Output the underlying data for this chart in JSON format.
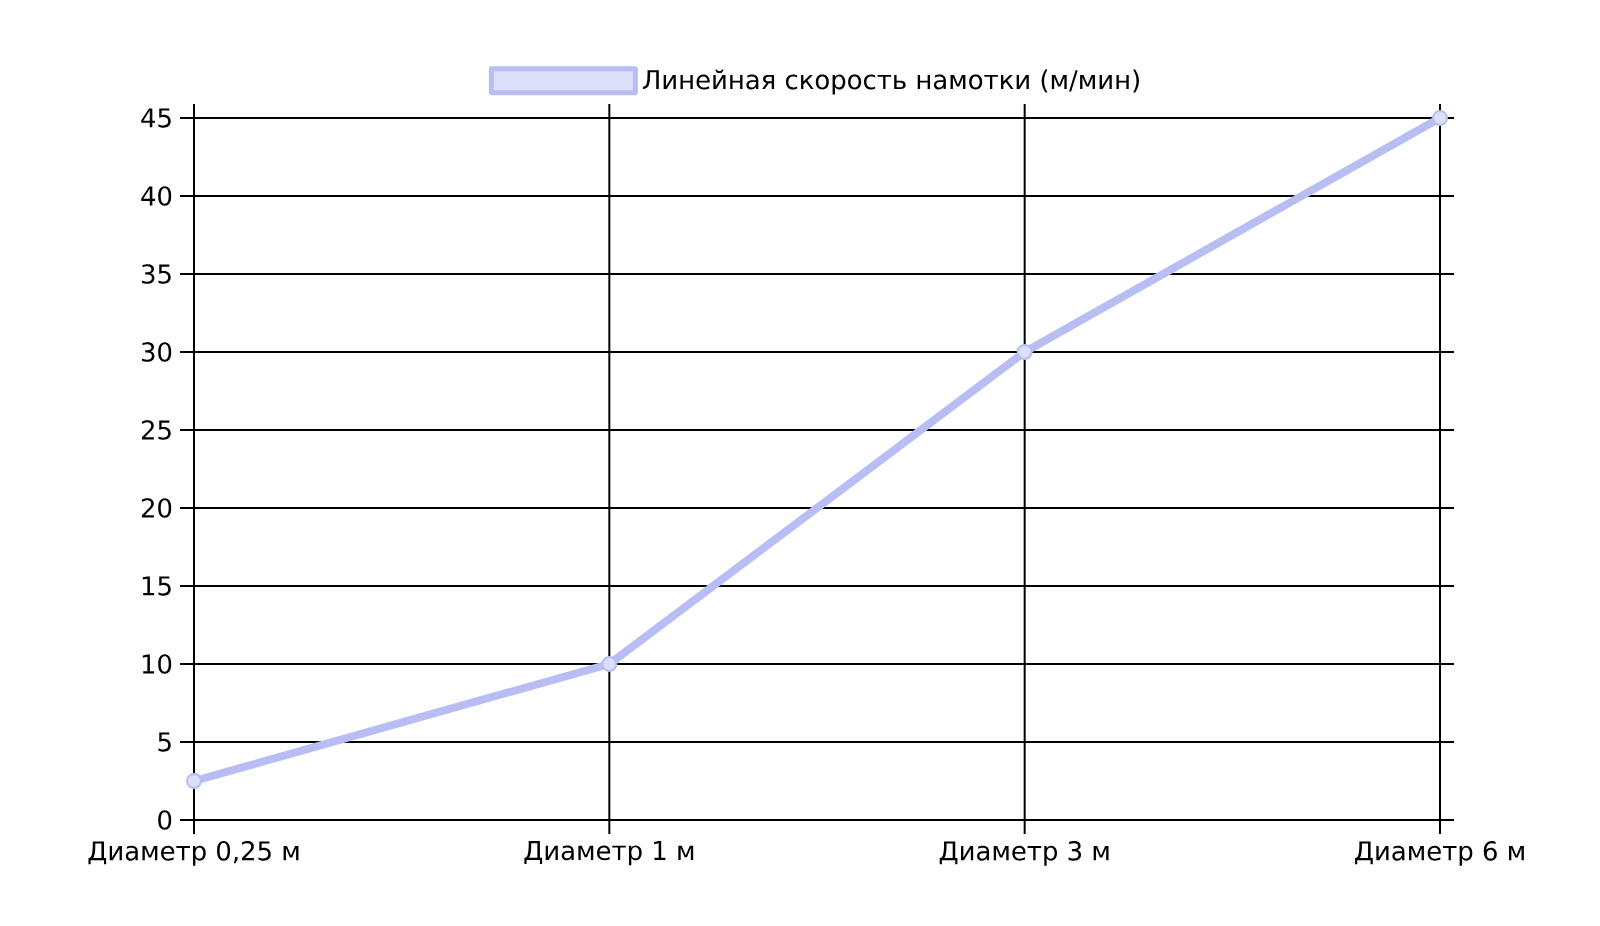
{
  "chart_data": {
    "type": "line",
    "categories": [
      "Диаметр 0,25 м",
      "Диаметр 1 м",
      "Диаметр 3 м",
      "Диаметр 6 м"
    ],
    "series": [
      {
        "name": "Линейная скорость намотки (м/мин)",
        "color": "#b8bef4",
        "values": [
          2.5,
          10,
          30,
          45
        ]
      }
    ],
    "ylim": [
      0,
      45
    ],
    "yticks": [
      0,
      5,
      10,
      15,
      20,
      25,
      30,
      35,
      40,
      45
    ],
    "grid": true,
    "legend": "top",
    "marker": "circle",
    "line_style": "solid"
  }
}
